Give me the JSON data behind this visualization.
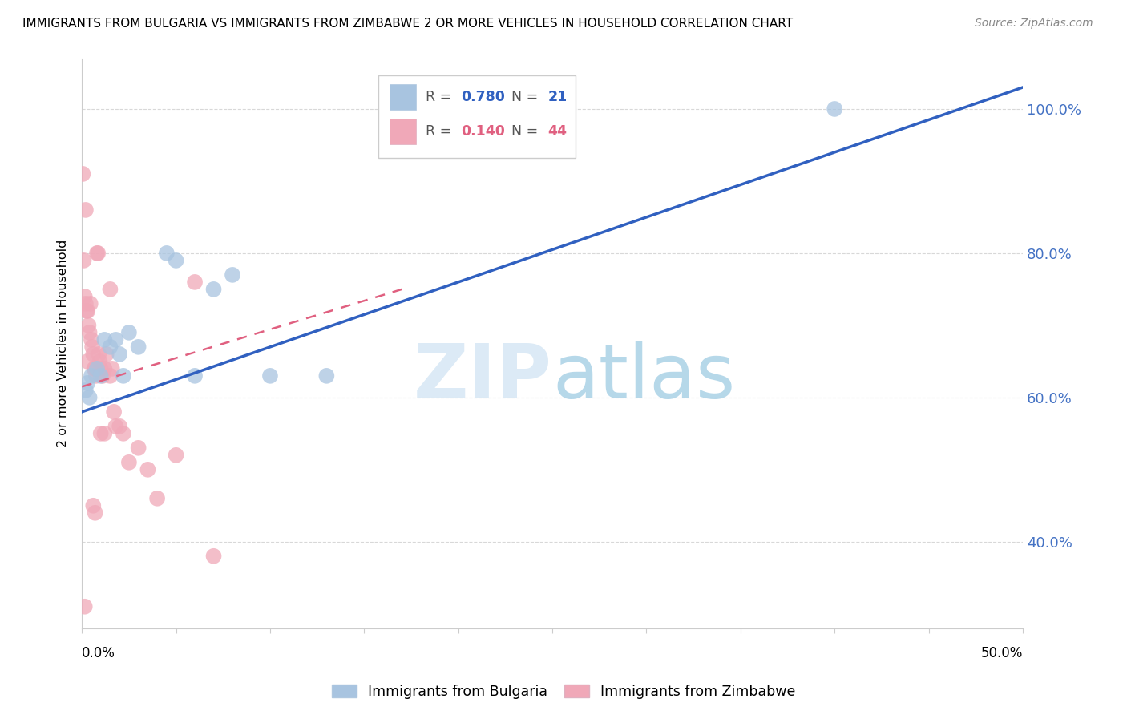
{
  "title": "IMMIGRANTS FROM BULGARIA VS IMMIGRANTS FROM ZIMBABWE 2 OR MORE VEHICLES IN HOUSEHOLD CORRELATION CHART",
  "source": "Source: ZipAtlas.com",
  "ylabel": "2 or more Vehicles in Household",
  "xlim": [
    0.0,
    50.0
  ],
  "ylim": [
    28.0,
    107.0
  ],
  "yticks": [
    40.0,
    60.0,
    80.0,
    100.0
  ],
  "xticks": [
    0.0,
    5.0,
    10.0,
    15.0,
    20.0,
    25.0,
    30.0,
    35.0,
    40.0,
    45.0,
    50.0
  ],
  "bulgaria_color": "#a8c4e0",
  "zimbabwe_color": "#f0a8b8",
  "bulgaria_line_color": "#3060c0",
  "zimbabwe_line_color": "#e06080",
  "R_bulgaria": 0.78,
  "N_bulgaria": 21,
  "R_zimbabwe": 0.14,
  "N_zimbabwe": 44,
  "legend_label_bulgaria": "Immigrants from Bulgaria",
  "legend_label_zimbabwe": "Immigrants from Zimbabwe",
  "watermark_zip": "ZIP",
  "watermark_atlas": "atlas",
  "bulgaria_line_x0": 0.0,
  "bulgaria_line_y0": 58.0,
  "bulgaria_line_x1": 50.0,
  "bulgaria_line_y1": 103.0,
  "zimbabwe_line_x0": 0.0,
  "zimbabwe_line_y0": 61.5,
  "zimbabwe_line_x1": 17.0,
  "zimbabwe_line_y1": 75.0,
  "bulgaria_x": [
    0.2,
    0.3,
    0.5,
    0.8,
    1.0,
    1.2,
    1.5,
    1.8,
    2.0,
    2.2,
    2.5,
    3.0,
    4.5,
    5.0,
    6.0,
    7.0,
    8.0,
    10.0,
    13.0,
    40.0,
    0.4
  ],
  "bulgaria_y": [
    61,
    62,
    63,
    64,
    63,
    68,
    67,
    68,
    66,
    63,
    69,
    67,
    80,
    79,
    63,
    75,
    77,
    63,
    63,
    100,
    60
  ],
  "zimbabwe_x": [
    0.05,
    0.1,
    0.15,
    0.2,
    0.25,
    0.3,
    0.35,
    0.4,
    0.45,
    0.5,
    0.55,
    0.6,
    0.65,
    0.7,
    0.75,
    0.8,
    0.85,
    0.9,
    0.95,
    1.0,
    1.1,
    1.2,
    1.3,
    1.5,
    1.6,
    1.7,
    1.8,
    2.0,
    2.2,
    2.5,
    3.0,
    3.5,
    4.0,
    5.0,
    6.0,
    0.2,
    0.3,
    0.6,
    0.7,
    1.0,
    1.2,
    1.5,
    7.0,
    0.15
  ],
  "zimbabwe_y": [
    91,
    79,
    74,
    73,
    72,
    72,
    70,
    69,
    73,
    68,
    67,
    66,
    64,
    64,
    63,
    80,
    80,
    66,
    65,
    64,
    63,
    64,
    66,
    63,
    64,
    58,
    56,
    56,
    55,
    51,
    53,
    50,
    46,
    52,
    76,
    86,
    65,
    45,
    44,
    55,
    55,
    75,
    38,
    31
  ]
}
